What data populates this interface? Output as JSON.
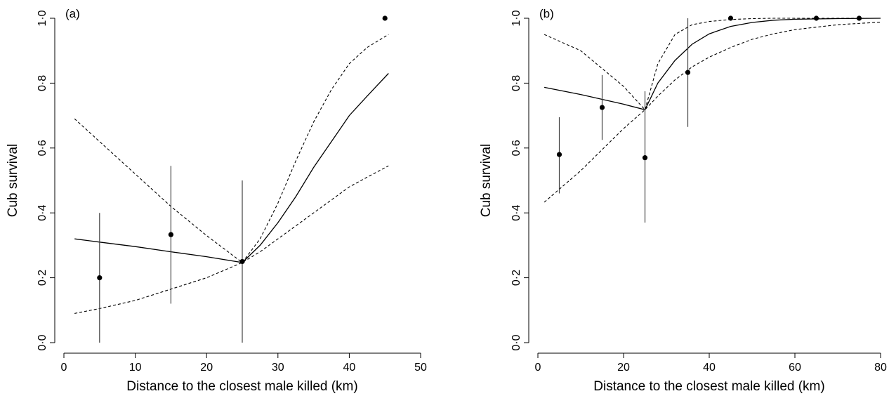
{
  "chart_data": [
    {
      "type": "scatter",
      "panel_label": "(a)",
      "xlabel": "Distance to the closest male killed (km)",
      "ylabel": "Cub survival",
      "xlim": [
        0,
        50
      ],
      "ylim": [
        0,
        1
      ],
      "x_ticks": [
        0,
        10,
        20,
        30,
        40,
        50
      ],
      "x_tick_labels": [
        "0",
        "10",
        "20",
        "30",
        "40",
        "50"
      ],
      "y_ticks": [
        0,
        0.2,
        0.4,
        0.6,
        0.8,
        1.0
      ],
      "y_tick_labels": [
        "0·0",
        "0·2",
        "0·4",
        "0·6",
        "0·8",
        "1·0"
      ],
      "grid": false,
      "points": [
        {
          "x": 5,
          "y": 0.2,
          "lo": 0.0,
          "hi": 0.4
        },
        {
          "x": 15,
          "y": 0.333,
          "lo": 0.12,
          "hi": 0.545
        },
        {
          "x": 25,
          "y": 0.25,
          "lo": 0.0,
          "hi": 0.5
        },
        {
          "x": 45,
          "y": 1.0,
          "lo": null,
          "hi": null
        }
      ],
      "fit": {
        "x": [
          1.5,
          5,
          10,
          15,
          20,
          25,
          27.5,
          30,
          32.5,
          35,
          37.5,
          40,
          42.5,
          45.5
        ],
        "y": [
          0.32,
          0.31,
          0.296,
          0.28,
          0.265,
          0.247,
          0.3,
          0.37,
          0.45,
          0.54,
          0.62,
          0.7,
          0.76,
          0.83
        ]
      },
      "upper_ci": {
        "x": [
          1.5,
          5,
          10,
          15,
          20,
          25,
          27.5,
          30,
          32.5,
          35,
          37.5,
          40,
          42.5,
          45.5
        ],
        "y": [
          0.69,
          0.62,
          0.52,
          0.42,
          0.33,
          0.247,
          0.32,
          0.43,
          0.56,
          0.68,
          0.78,
          0.86,
          0.91,
          0.95
        ]
      },
      "lower_ci": {
        "x": [
          1.5,
          5,
          10,
          15,
          20,
          25,
          27.5,
          30,
          32.5,
          35,
          37.5,
          40,
          42.5,
          45.5
        ],
        "y": [
          0.09,
          0.105,
          0.13,
          0.165,
          0.2,
          0.247,
          0.28,
          0.32,
          0.36,
          0.4,
          0.44,
          0.48,
          0.51,
          0.545
        ]
      }
    },
    {
      "type": "scatter",
      "panel_label": "(b)",
      "xlabel": "Distance to the closest male killed (km)",
      "ylabel": "Cub survival",
      "xlim": [
        0,
        80
      ],
      "ylim": [
        0,
        1
      ],
      "x_ticks": [
        0,
        20,
        40,
        60,
        80
      ],
      "x_tick_labels": [
        "0",
        "20",
        "40",
        "60",
        "80"
      ],
      "y_ticks": [
        0,
        0.2,
        0.4,
        0.6,
        0.8,
        1.0
      ],
      "y_tick_labels": [
        "0·0",
        "0·2",
        "0·4",
        "0·6",
        "0·8",
        "1·0"
      ],
      "grid": false,
      "points": [
        {
          "x": 5,
          "y": 0.58,
          "lo": 0.46,
          "hi": 0.695
        },
        {
          "x": 15,
          "y": 0.725,
          "lo": 0.625,
          "hi": 0.825
        },
        {
          "x": 25,
          "y": 0.57,
          "lo": 0.37,
          "hi": 0.775
        },
        {
          "x": 35,
          "y": 0.833,
          "lo": 0.665,
          "hi": 1.0
        },
        {
          "x": 45,
          "y": 1.0,
          "lo": null,
          "hi": null
        },
        {
          "x": 65,
          "y": 1.0,
          "lo": null,
          "hi": null
        },
        {
          "x": 75,
          "y": 1.0,
          "lo": null,
          "hi": null
        }
      ],
      "fit": {
        "x": [
          1.5,
          10,
          20,
          25,
          28,
          32,
          36,
          40,
          45,
          50,
          55,
          60,
          70,
          80
        ],
        "y": [
          0.787,
          0.765,
          0.735,
          0.718,
          0.8,
          0.87,
          0.92,
          0.952,
          0.975,
          0.987,
          0.994,
          0.997,
          0.999,
          1.0
        ]
      },
      "upper_ci": {
        "x": [
          1.5,
          10,
          20,
          25,
          28,
          32,
          36,
          40,
          45,
          50,
          55,
          60,
          70,
          80
        ],
        "y": [
          0.95,
          0.9,
          0.79,
          0.718,
          0.86,
          0.95,
          0.98,
          0.99,
          0.996,
          0.999,
          1.0,
          1.0,
          1.0,
          1.0
        ]
      },
      "lower_ci": {
        "x": [
          1.5,
          10,
          20,
          25,
          28,
          32,
          36,
          40,
          45,
          50,
          55,
          60,
          70,
          80
        ],
        "y": [
          0.433,
          0.53,
          0.66,
          0.718,
          0.76,
          0.81,
          0.85,
          0.88,
          0.91,
          0.935,
          0.952,
          0.965,
          0.98,
          0.988
        ]
      }
    }
  ]
}
